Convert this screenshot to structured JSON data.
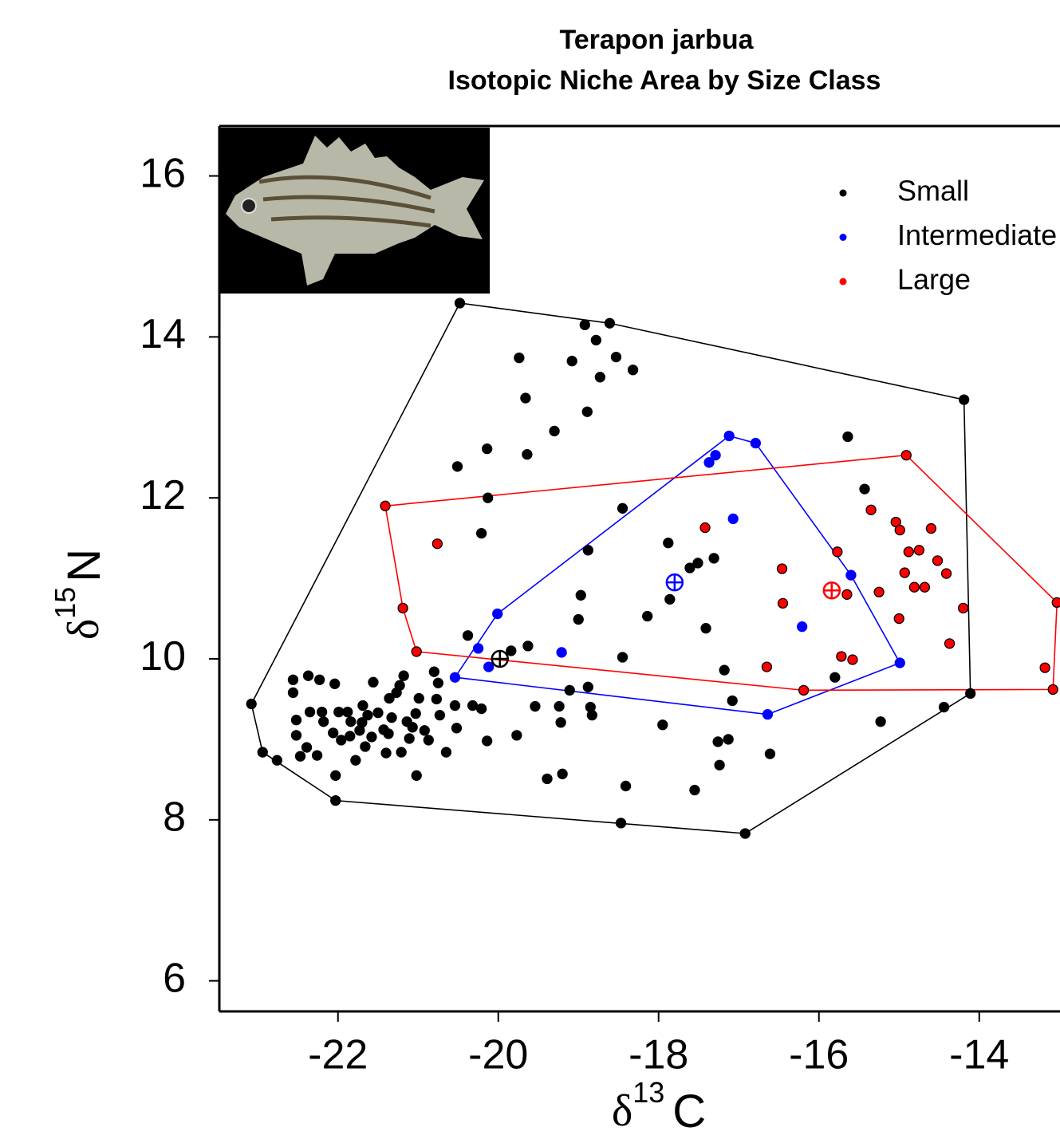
{
  "chart_data": {
    "type": "scatter",
    "title": "Terapon jarbua",
    "subtitle": "Isotopic Niche Area by Size Class",
    "x_label": {
      "symbol": "δ",
      "superscript": "13",
      "text": "C"
    },
    "y_label": {
      "symbol": "δ",
      "superscript": "15",
      "text": "N"
    },
    "xlim": [
      -23.48,
      -13.0
    ],
    "ylim": [
      5.62,
      16.62
    ],
    "xticks": [
      -22,
      -20,
      -18,
      -16,
      -14
    ],
    "yticks": [
      6,
      8,
      10,
      12,
      14,
      16
    ],
    "legend_position": "upper right",
    "series": [
      {
        "name": "Small",
        "color": "#000000",
        "edgecolor": "#000000",
        "x": [
          -23.08,
          -22.94,
          -22.76,
          -22.03,
          -18.47,
          -16.92,
          -14.11,
          -14.19,
          -18.61,
          -20.48,
          -18.92,
          -18.78,
          -19.74,
          -19.08,
          -18.53,
          -18.32,
          -18.73,
          -19.66,
          -18.89,
          -19.3,
          -20.14,
          -19.64,
          -20.51,
          -20.13,
          -18.45,
          -20.21,
          -18.88,
          -17.88,
          -17.61,
          -17.51,
          -17.31,
          -17.86,
          -18.97,
          -18.14,
          -19.0,
          -17.41,
          -20.38,
          -19.63,
          -19.84,
          -18.45,
          -17.18,
          -15.64,
          -15.43,
          -15.8,
          -17.08,
          -14.44,
          -15.23,
          -22.56,
          -22.37,
          -22.23,
          -22.04,
          -22.56,
          -22.52,
          -22.35,
          -22.2,
          -22.18,
          -21.99,
          -21.88,
          -21.96,
          -22.52,
          -22.39,
          -22.47,
          -22.26,
          -22.03,
          -22.06,
          -21.85,
          -21.73,
          -21.69,
          -21.63,
          -21.56,
          -21.5,
          -21.36,
          -21.33,
          -21.37,
          -21.27,
          -21.23,
          -21.18,
          -20.99,
          -21.03,
          -21.07,
          -21.11,
          -20.92,
          -20.87,
          -21.21,
          -21.4,
          -21.66,
          -21.78,
          -21.02,
          -20.8,
          -20.75,
          -20.73,
          -20.65,
          -20.54,
          -20.52,
          -20.32,
          -20.21,
          -20.14,
          -19.77,
          -19.54,
          -19.39,
          -19.2,
          -19.24,
          -19.22,
          -19.11,
          -18.88,
          -18.85,
          -18.83,
          -18.41,
          -17.95,
          -17.55,
          -17.26,
          -17.13,
          -17.24,
          -16.61,
          -20.77,
          -21.14,
          -21.43,
          -21.58,
          -21.7,
          -21.84
        ],
        "y": [
          9.44,
          8.84,
          8.74,
          8.24,
          7.96,
          7.83,
          9.57,
          13.22,
          14.17,
          14.42,
          14.15,
          13.96,
          13.74,
          13.7,
          13.75,
          13.59,
          13.5,
          13.24,
          13.07,
          12.83,
          12.61,
          12.54,
          12.39,
          12.0,
          11.87,
          11.56,
          11.35,
          11.44,
          11.13,
          11.19,
          11.25,
          10.74,
          10.79,
          10.53,
          10.49,
          10.38,
          10.29,
          10.16,
          10.1,
          10.02,
          9.86,
          12.76,
          12.11,
          9.77,
          9.48,
          9.4,
          9.22,
          9.74,
          9.79,
          9.74,
          9.69,
          9.58,
          9.24,
          9.34,
          9.34,
          9.22,
          9.34,
          9.34,
          8.99,
          9.05,
          8.9,
          8.79,
          8.8,
          8.55,
          9.08,
          9.04,
          9.11,
          9.42,
          9.3,
          9.71,
          9.33,
          9.51,
          9.27,
          9.07,
          9.58,
          9.67,
          9.79,
          9.51,
          9.32,
          9.15,
          9.01,
          9.11,
          8.99,
          8.84,
          8.83,
          8.91,
          8.74,
          8.55,
          9.84,
          9.7,
          9.3,
          8.84,
          9.42,
          9.14,
          9.42,
          9.38,
          8.98,
          9.05,
          9.41,
          8.51,
          8.57,
          9.41,
          9.21,
          9.61,
          9.65,
          9.4,
          9.3,
          8.42,
          9.18,
          8.37,
          8.97,
          9.0,
          8.68,
          8.82,
          9.5,
          9.22,
          9.12,
          9.03,
          9.21,
          9.22
        ],
        "centroid": {
          "x": -19.98,
          "y": 10.0
        }
      },
      {
        "name": "Intermediate",
        "color": "#0000ff",
        "edgecolor": "#0000ff",
        "x": [
          -20.54,
          -16.64,
          -14.99,
          -15.6,
          -16.79,
          -17.12,
          -17.37,
          -20.01,
          -20.25,
          -20.12,
          -19.21,
          -17.29,
          -17.07,
          -16.21
        ],
        "y": [
          9.77,
          9.31,
          9.95,
          11.04,
          12.68,
          12.77,
          12.44,
          10.56,
          10.13,
          9.9,
          10.08,
          12.53,
          11.74,
          10.4
        ],
        "centroid": {
          "x": -17.8,
          "y": 10.95
        }
      },
      {
        "name": "Large",
        "color": "#ff0000",
        "edgecolor": "#000000",
        "x": [
          -21.41,
          -14.91,
          -13.03,
          -13.08,
          -16.19,
          -21.02,
          -21.19,
          -20.76,
          -17.42,
          -16.46,
          -16.45,
          -16.65,
          -15.77,
          -15.65,
          -15.72,
          -15.58,
          -15.25,
          -15.35,
          -15.04,
          -14.99,
          -14.88,
          -14.75,
          -14.6,
          -14.93,
          -14.81,
          -14.68,
          -14.52,
          -14.41,
          -15.0,
          -14.2,
          -14.37,
          -13.18
        ],
        "y": [
          11.9,
          12.53,
          10.7,
          9.62,
          9.61,
          10.09,
          10.63,
          11.43,
          11.63,
          11.12,
          10.69,
          9.9,
          11.33,
          10.8,
          10.03,
          9.99,
          10.83,
          11.85,
          11.7,
          11.6,
          11.33,
          11.35,
          11.62,
          11.07,
          10.89,
          10.89,
          11.22,
          11.06,
          10.5,
          10.63,
          10.19,
          9.89
        ],
        "centroid": {
          "x": -15.84,
          "y": 10.85
        }
      }
    ]
  }
}
